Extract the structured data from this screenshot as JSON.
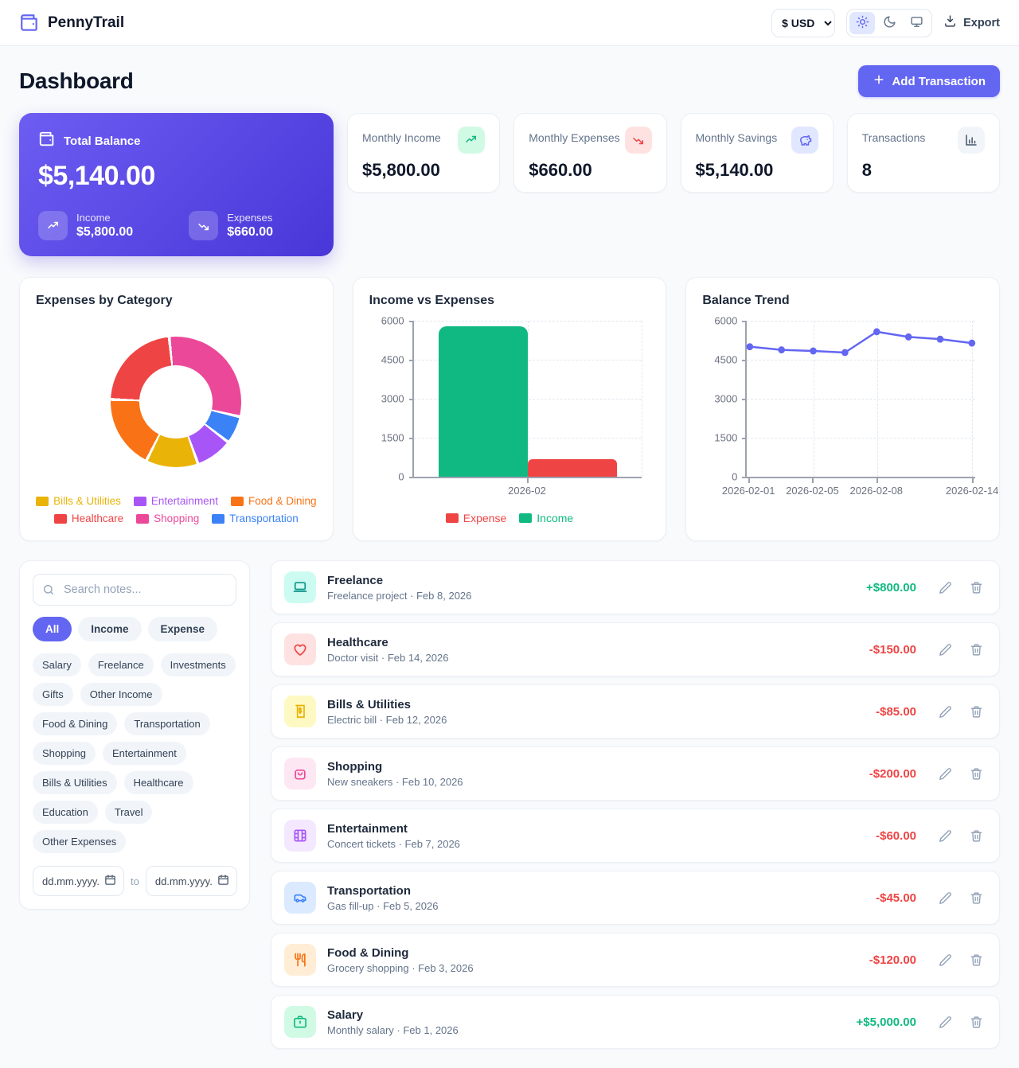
{
  "header": {
    "brand": "PennyTrail",
    "currency_value": "$ USD",
    "theme_options": [
      "light",
      "dark",
      "system"
    ],
    "theme_active": "light",
    "export_label": "Export"
  },
  "page": {
    "title": "Dashboard",
    "add_transaction_label": "Add Transaction"
  },
  "balance_card": {
    "label": "Total Balance",
    "value": "$5,140.00",
    "income_label": "Income",
    "income_value": "$5,800.00",
    "expenses_label": "Expenses",
    "expenses_value": "$660.00"
  },
  "stat_cards": [
    {
      "label": "Monthly Income",
      "value": "$5,800.00",
      "icon": "trending-up-icon",
      "icon_color": "#10b981",
      "icon_bg": "#d1fae5"
    },
    {
      "label": "Monthly Expenses",
      "value": "$660.00",
      "icon": "trending-down-icon",
      "icon_color": "#ef4444",
      "icon_bg": "#fee2e2"
    },
    {
      "label": "Monthly Savings",
      "value": "$5,140.00",
      "icon": "piggy-bank-icon",
      "icon_color": "#6366f1",
      "icon_bg": "#e0e7ff"
    },
    {
      "label": "Transactions",
      "value": "8",
      "icon": "bar-chart-icon",
      "icon_color": "#475569",
      "icon_bg": "#f1f5f9"
    }
  ],
  "chart_data": [
    {
      "type": "pie",
      "donut": true,
      "title": "Expenses by Category",
      "categories": [
        "Bills & Utilities",
        "Entertainment",
        "Food & Dining",
        "Healthcare",
        "Shopping",
        "Transportation"
      ],
      "values": [
        85,
        60,
        120,
        150,
        200,
        45
      ],
      "colors": [
        "#eab308",
        "#a855f7",
        "#f97316",
        "#ef4444",
        "#ec4899",
        "#3b82f6"
      ],
      "render_order": [
        4,
        5,
        1,
        0,
        2,
        3
      ],
      "start_angle": -6,
      "legend_position": "bottom"
    },
    {
      "type": "bar",
      "title": "Income vs Expenses",
      "categories": [
        "2026-02"
      ],
      "series": [
        {
          "name": "Expense",
          "values": [
            660
          ],
          "color": "#ef4444"
        },
        {
          "name": "Income",
          "values": [
            5800
          ],
          "color": "#10b981"
        }
      ],
      "bar_display_order": [
        "Income",
        "Expense"
      ],
      "legend": [
        "Expense",
        "Income"
      ],
      "legend_position": "bottom",
      "ylim": [
        0,
        6000
      ],
      "yticks": [
        0,
        1500,
        3000,
        4500,
        6000
      ],
      "grid": true
    },
    {
      "type": "line",
      "title": "Balance Trend",
      "x": [
        "2026-02-01",
        "2026-02-03",
        "2026-02-05",
        "2026-02-07",
        "2026-02-08",
        "2026-02-10",
        "2026-02-12",
        "2026-02-14"
      ],
      "y": [
        5000,
        4880,
        4835,
        4775,
        5575,
        5375,
        5290,
        5140
      ],
      "xtick_indices": [
        0,
        2,
        4,
        7
      ],
      "grid_x_indices": [
        2,
        4,
        7
      ],
      "color": "#6366f1",
      "ylim": [
        0,
        6000
      ],
      "yticks": [
        0,
        1500,
        3000,
        4500,
        6000
      ],
      "grid": true
    }
  ],
  "filters": {
    "search_placeholder": "Search notes...",
    "type_tabs": [
      {
        "label": "All",
        "active": true
      },
      {
        "label": "Income",
        "active": false
      },
      {
        "label": "Expense",
        "active": false
      }
    ],
    "category_chips": [
      "Salary",
      "Freelance",
      "Investments",
      "Gifts",
      "Other Income",
      "Food & Dining",
      "Transportation",
      "Shopping",
      "Entertainment",
      "Bills & Utilities",
      "Healthcare",
      "Education",
      "Travel",
      "Other Expenses"
    ],
    "date_from_placeholder": "dd.mm.yyyy.",
    "date_separator": "to",
    "date_to_placeholder": "dd.mm.yyyy."
  },
  "transactions": [
    {
      "category": "Freelance",
      "note": "Freelance project",
      "date": "Feb 8, 2026",
      "amount": "+$800.00",
      "direction": "income",
      "icon": "laptop-icon",
      "icon_color": "#0d9488",
      "icon_bg": "#ccfbf1"
    },
    {
      "category": "Healthcare",
      "note": "Doctor visit",
      "date": "Feb 14, 2026",
      "amount": "-$150.00",
      "direction": "expense",
      "icon": "heart-icon",
      "icon_color": "#ef4444",
      "icon_bg": "#fee2e2"
    },
    {
      "category": "Bills & Utilities",
      "note": "Electric bill",
      "date": "Feb 12, 2026",
      "amount": "-$85.00",
      "direction": "expense",
      "icon": "receipt-icon",
      "icon_color": "#eab308",
      "icon_bg": "#fef9c3"
    },
    {
      "category": "Shopping",
      "note": "New sneakers",
      "date": "Feb 10, 2026",
      "amount": "-$200.00",
      "direction": "expense",
      "icon": "shopping-bag-icon",
      "icon_color": "#ec4899",
      "icon_bg": "#fce7f3"
    },
    {
      "category": "Entertainment",
      "note": "Concert tickets",
      "date": "Feb 7, 2026",
      "amount": "-$60.00",
      "direction": "expense",
      "icon": "film-icon",
      "icon_color": "#a855f7",
      "icon_bg": "#f3e8ff"
    },
    {
      "category": "Transportation",
      "note": "Gas fill-up",
      "date": "Feb 5, 2026",
      "amount": "-$45.00",
      "direction": "expense",
      "icon": "car-icon",
      "icon_color": "#3b82f6",
      "icon_bg": "#dbeafe"
    },
    {
      "category": "Food & Dining",
      "note": "Grocery shopping",
      "date": "Feb 3, 2026",
      "amount": "-$120.00",
      "direction": "expense",
      "icon": "utensils-icon",
      "icon_color": "#f97316",
      "icon_bg": "#ffedd5"
    },
    {
      "category": "Salary",
      "note": "Monthly salary",
      "date": "Feb 1, 2026",
      "amount": "+$5,000.00",
      "direction": "income",
      "icon": "briefcase-icon",
      "icon_color": "#10b981",
      "icon_bg": "#d1fae5"
    }
  ],
  "colors": {
    "accent": "#6366f1",
    "income": "#10b981",
    "expense": "#ef4444",
    "page_bg": "#f8fafc"
  }
}
